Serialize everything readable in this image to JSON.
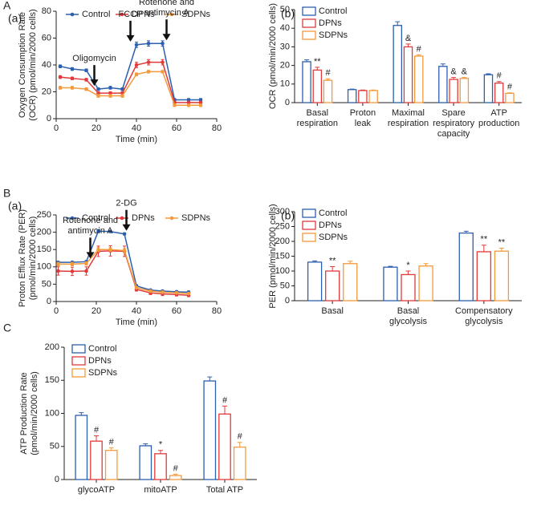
{
  "chart_data": [
    {
      "type": "line",
      "section": "A",
      "panel": "(a)",
      "xlabel": "Time (min)",
      "ylabel": [
        "Oxygen Consumption Rate",
        "(OCR) (pmol/min/2000 cells)"
      ],
      "x": [
        2,
        8,
        15,
        21,
        27,
        33,
        40,
        46,
        53,
        59,
        66,
        72
      ],
      "xlim": [
        0,
        80
      ],
      "xticks": [
        0,
        20,
        40,
        60,
        80
      ],
      "ylim": [
        0,
        80
      ],
      "yticks": [
        0,
        20,
        40,
        60,
        80
      ],
      "legend": "top",
      "series": [
        {
          "name": "Control",
          "color": "#2c5fae",
          "values": [
            39,
            37,
            36,
            22,
            23,
            22,
            55,
            56,
            56,
            14,
            14,
            14
          ],
          "errors": [
            1,
            1,
            1,
            1,
            1,
            1,
            2,
            2,
            2,
            1,
            1,
            1
          ]
        },
        {
          "name": "DPNs",
          "color": "#e23a3a",
          "values": [
            31,
            30,
            29,
            19,
            19,
            19,
            40,
            42,
            42,
            12,
            12,
            12
          ],
          "errors": [
            1,
            1,
            1,
            1,
            1,
            1,
            2,
            2,
            2,
            1,
            1,
            1
          ]
        },
        {
          "name": "SDPNs",
          "color": "#f39a3c",
          "values": [
            23,
            23,
            22,
            17,
            17,
            17,
            33,
            35,
            35,
            10,
            10,
            10
          ],
          "errors": [
            1,
            1,
            1,
            1,
            1,
            1,
            1,
            1,
            1,
            1,
            1,
            1
          ]
        }
      ],
      "annotations": [
        {
          "x": 19,
          "lines": [
            "Oligomycin"
          ]
        },
        {
          "x": 37,
          "lines": [
            "FCCP"
          ]
        },
        {
          "x": 55,
          "lines": [
            "Rotenone and",
            "antimycin A"
          ]
        }
      ]
    },
    {
      "type": "bar",
      "panel": "(b)",
      "ylabel": [
        "OCR (pmol/min/2000 cells)"
      ],
      "categories": [
        [
          "Basal",
          "respiration"
        ],
        [
          "Proton",
          "leak"
        ],
        [
          "Maximal",
          "respiration"
        ],
        [
          "Spare",
          "respiratory",
          "capacity"
        ],
        [
          "ATP",
          "production"
        ]
      ],
      "ylim": [
        0,
        50
      ],
      "yticks": [
        0,
        10,
        20,
        30,
        40,
        50
      ],
      "legend": "top-left",
      "series": [
        {
          "name": "Control",
          "color": "#2c5fae",
          "values": [
            22,
            7,
            41.5,
            19.5,
            15
          ],
          "errors": [
            1,
            0.3,
            2,
            1.3,
            0.5
          ],
          "markers": [
            null,
            null,
            null,
            null,
            null
          ]
        },
        {
          "name": "DPNs",
          "color": "#e23a3a",
          "values": [
            17.5,
            6.5,
            30,
            12.5,
            10.5
          ],
          "errors": [
            1.5,
            0.3,
            1.5,
            1,
            0.8
          ],
          "markers": [
            "**",
            null,
            "&",
            "&",
            "#"
          ]
        },
        {
          "name": "SDPNs",
          "color": "#f39a3c",
          "values": [
            12,
            6.5,
            25,
            13,
            5
          ],
          "errors": [
            0.8,
            0.3,
            0.7,
            0.5,
            0.3
          ],
          "markers": [
            "#",
            null,
            "#",
            "&",
            "#"
          ]
        }
      ]
    },
    {
      "type": "line",
      "section": "B",
      "panel": "(a)",
      "xlabel": "Time (min)",
      "ylabel": [
        "Proton Efflux Rate (PER)",
        "(pmol/min/2000 cells)"
      ],
      "x": [
        1,
        8,
        15,
        21,
        27,
        34,
        40,
        47,
        53,
        60,
        66
      ],
      "xlim": [
        0,
        80
      ],
      "xticks": [
        0,
        20,
        40,
        60,
        80
      ],
      "ylim": [
        0,
        250
      ],
      "yticks": [
        0,
        50,
        100,
        150,
        200,
        250
      ],
      "legend": "top",
      "series": [
        {
          "name": "Control",
          "color": "#2c5fae",
          "values": [
            113,
            113,
            115,
            203,
            202,
            195,
            45,
            33,
            30,
            28,
            27
          ],
          "errors": [
            3,
            3,
            3,
            3,
            3,
            3,
            3,
            3,
            3,
            3,
            3
          ]
        },
        {
          "name": "DPNs",
          "color": "#e23a3a",
          "values": [
            88,
            87,
            88,
            145,
            146,
            145,
            35,
            25,
            22,
            20,
            18
          ],
          "errors": [
            12,
            12,
            12,
            15,
            15,
            15,
            5,
            5,
            5,
            4,
            4
          ]
        },
        {
          "name": "SDPNs",
          "color": "#f39a3c",
          "values": [
            108,
            108,
            110,
            150,
            150,
            147,
            40,
            30,
            27,
            25,
            23
          ],
          "errors": [
            5,
            5,
            5,
            6,
            6,
            6,
            3,
            3,
            3,
            3,
            3
          ]
        }
      ],
      "annotations": [
        {
          "x": 17,
          "lines": [
            "Rotenone and",
            "antimycin A"
          ]
        },
        {
          "x": 35,
          "lines": [
            "2-DG"
          ]
        }
      ]
    },
    {
      "type": "bar",
      "panel": "(b)",
      "ylabel": [
        "PER (pmol/min/2000 cells)"
      ],
      "categories": [
        [
          "Basal"
        ],
        [
          "Basal",
          "glycolysis"
        ],
        [
          "Compensatory",
          "glycolysis"
        ]
      ],
      "ylim": [
        0,
        300
      ],
      "yticks": [
        0,
        50,
        100,
        150,
        200,
        250,
        300
      ],
      "legend": "top-left",
      "series": [
        {
          "name": "Control",
          "color": "#2c5fae",
          "values": [
            130,
            113,
            228
          ],
          "errors": [
            4,
            3,
            6
          ],
          "markers": [
            null,
            null,
            null
          ]
        },
        {
          "name": "DPNs",
          "color": "#e23a3a",
          "values": [
            100,
            88,
            165
          ],
          "errors": [
            15,
            12,
            22
          ],
          "markers": [
            "**",
            "*",
            "**"
          ]
        },
        {
          "name": "SDPNs",
          "color": "#f39a3c",
          "values": [
            125,
            117,
            167
          ],
          "errors": [
            8,
            8,
            10
          ],
          "markers": [
            null,
            null,
            "**"
          ]
        }
      ]
    },
    {
      "type": "bar",
      "section": "C",
      "ylabel": [
        "ATP Production Rate",
        "(pmol/min/2000 cells)"
      ],
      "categories": [
        [
          "glycoATP"
        ],
        [
          "mitoATP"
        ],
        [
          "Total ATP"
        ]
      ],
      "ylim": [
        0,
        200
      ],
      "yticks": [
        0,
        50,
        100,
        150,
        200
      ],
      "legend": "top-left",
      "series": [
        {
          "name": "Control",
          "color": "#2c5fae",
          "values": [
            97,
            51,
            149
          ],
          "errors": [
            4,
            3,
            6
          ],
          "markers": [
            null,
            null,
            null
          ]
        },
        {
          "name": "DPNs",
          "color": "#e23a3a",
          "values": [
            58,
            39,
            99
          ],
          "errors": [
            8,
            5,
            12
          ],
          "markers": [
            "#",
            "*",
            "#"
          ]
        },
        {
          "name": "SDPNs",
          "color": "#f39a3c",
          "values": [
            44,
            6,
            49
          ],
          "errors": [
            4,
            2,
            7
          ],
          "markers": [
            "#",
            "#",
            "#"
          ]
        }
      ]
    }
  ]
}
